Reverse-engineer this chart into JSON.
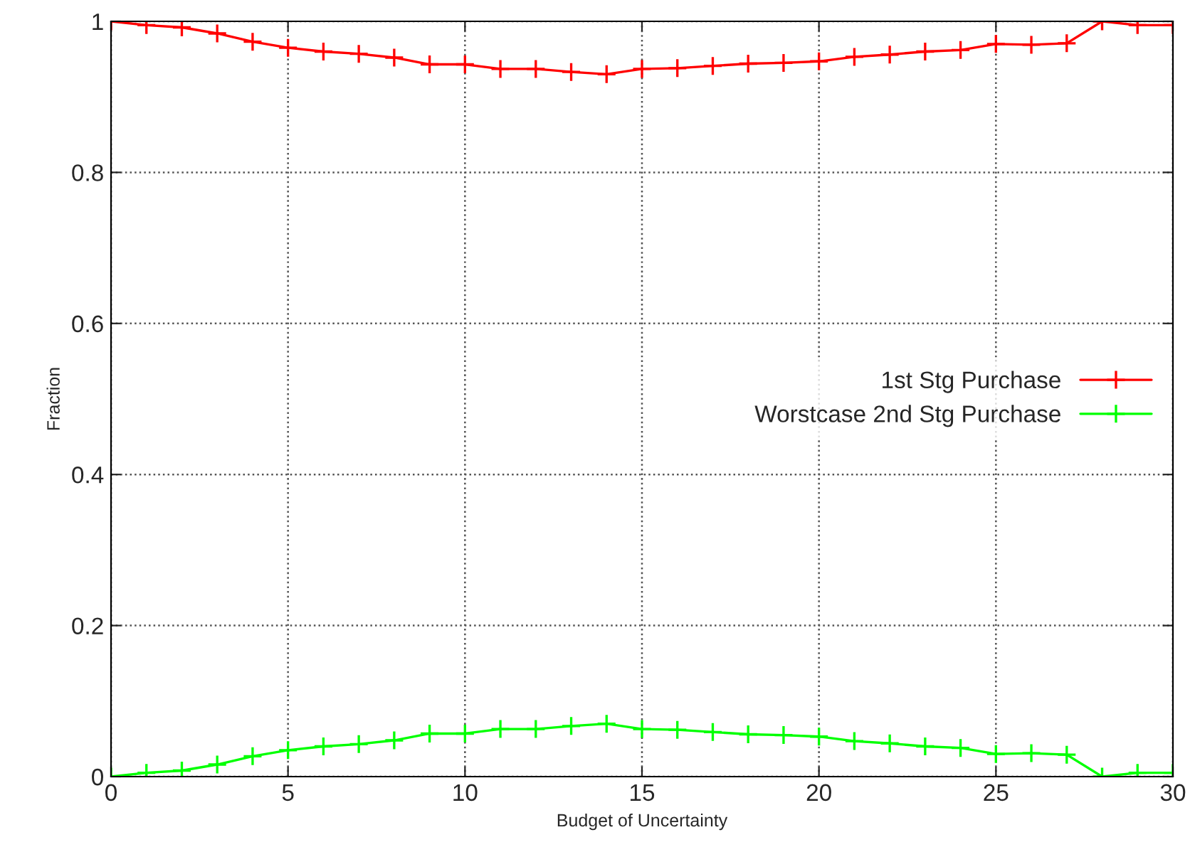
{
  "chart_data": {
    "type": "line",
    "xlabel": "Budget of Uncertainty",
    "ylabel": "Fraction",
    "x": [
      0,
      1,
      2,
      3,
      4,
      5,
      6,
      7,
      8,
      9,
      10,
      11,
      12,
      13,
      14,
      15,
      16,
      17,
      18,
      19,
      20,
      21,
      22,
      23,
      24,
      25,
      26,
      27,
      28,
      29,
      30
    ],
    "series": [
      {
        "name": "1st Stg Purchase",
        "color": "#ff0000",
        "values": [
          1.0,
          0.995,
          0.992,
          0.984,
          0.973,
          0.965,
          0.96,
          0.957,
          0.952,
          0.943,
          0.943,
          0.937,
          0.937,
          0.933,
          0.93,
          0.937,
          0.938,
          0.941,
          0.944,
          0.945,
          0.947,
          0.953,
          0.956,
          0.96,
          0.962,
          0.97,
          0.969,
          0.971,
          1.0,
          0.995,
          0.995
        ]
      },
      {
        "name": "Worstcase 2nd Stg Purchase",
        "color": "#00ff00",
        "values": [
          0.0,
          0.005,
          0.008,
          0.016,
          0.027,
          0.035,
          0.04,
          0.043,
          0.048,
          0.057,
          0.057,
          0.063,
          0.063,
          0.067,
          0.07,
          0.063,
          0.062,
          0.059,
          0.056,
          0.055,
          0.053,
          0.047,
          0.044,
          0.04,
          0.038,
          0.03,
          0.031,
          0.029,
          0.0,
          0.005,
          0.005
        ]
      }
    ],
    "xlim": [
      0,
      30
    ],
    "xticks": [
      0,
      5,
      10,
      15,
      20,
      25,
      30
    ],
    "ylim": [
      0,
      1
    ],
    "yticks": [
      0,
      {
        "value": 0.2,
        "label": "0.2"
      },
      {
        "value": 0.4,
        "label": "0.4"
      },
      {
        "value": 0.6,
        "label": "0.6"
      },
      {
        "value": 0.8,
        "label": "0.8"
      },
      1
    ],
    "grid": true,
    "legend": "right",
    "marker": "cross",
    "line_style": "solid"
  }
}
